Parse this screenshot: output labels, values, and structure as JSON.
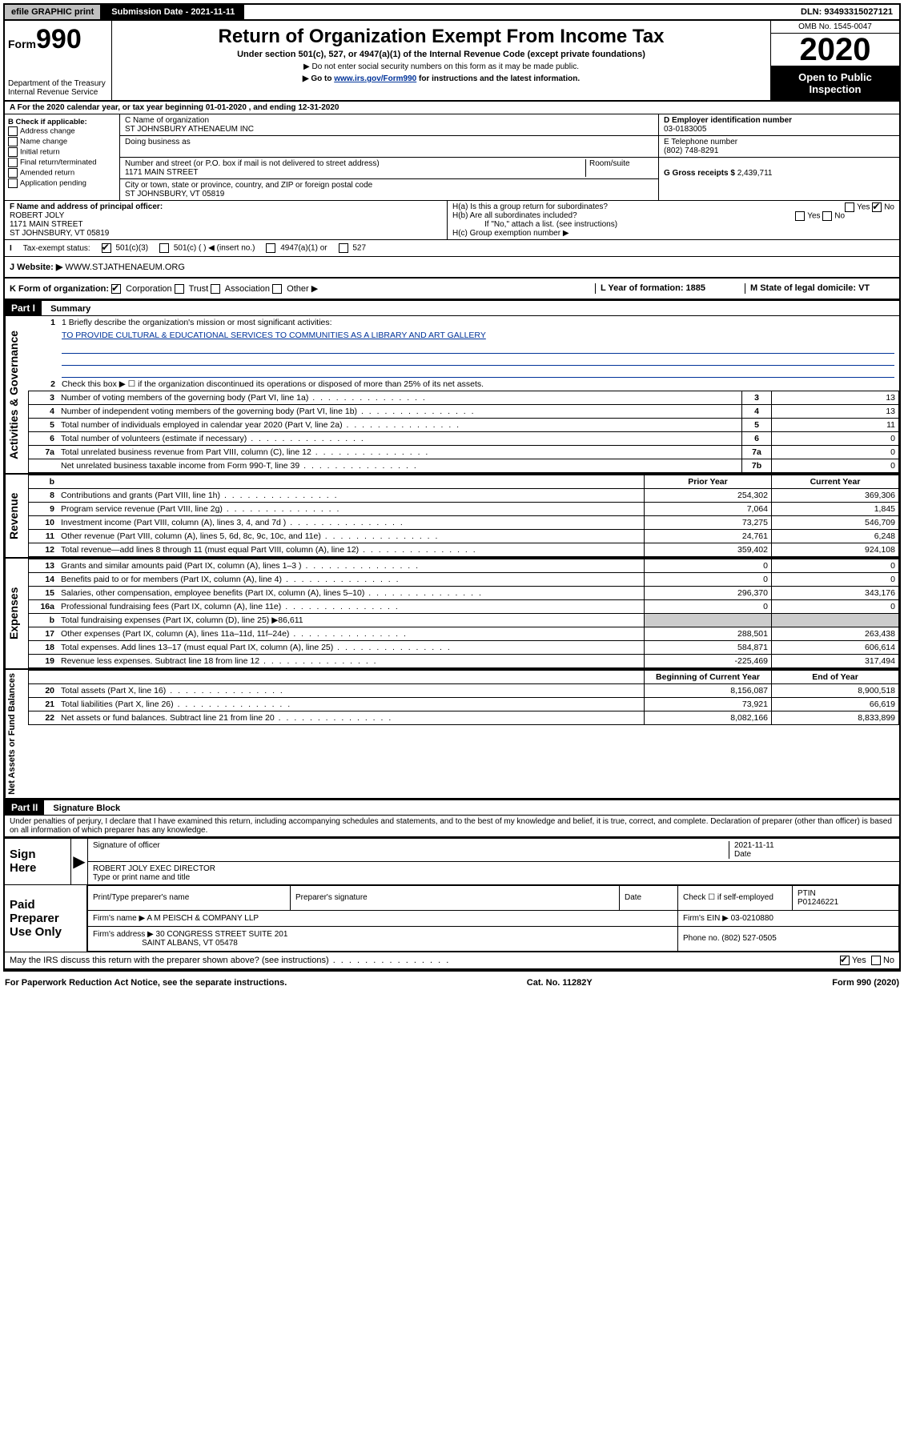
{
  "topbar": {
    "efile": "efile GRAPHIC print",
    "submission": "Submission Date - 2021-11-11",
    "dln": "DLN: 93493315027121"
  },
  "header": {
    "form_prefix": "Form",
    "form_number": "990",
    "dept": "Department of the Treasury",
    "irs": "Internal Revenue Service",
    "title": "Return of Organization Exempt From Income Tax",
    "subtitle": "Under section 501(c), 527, or 4947(a)(1) of the Internal Revenue Code (except private foundations)",
    "note1": "▶ Do not enter social security numbers on this form as it may be made public.",
    "note2_pre": "▶ Go to ",
    "note2_link": "www.irs.gov/Form990",
    "note2_post": " for instructions and the latest information.",
    "omb": "OMB No. 1545-0047",
    "year": "2020",
    "open": "Open to Public Inspection"
  },
  "lineA": "A For the 2020 calendar year, or tax year beginning 01-01-2020    , and ending 12-31-2020",
  "colB": {
    "title": "B Check if applicable:",
    "opts": [
      "Address change",
      "Name change",
      "Initial return",
      "Final return/terminated",
      "Amended return",
      "Application pending"
    ]
  },
  "colC": {
    "name_label": "C Name of organization",
    "name": "ST JOHNSBURY ATHENAEUM INC",
    "dba_label": "Doing business as",
    "addr_label": "Number and street (or P.O. box if mail is not delivered to street address)",
    "room_label": "Room/suite",
    "street": "1171 MAIN STREET",
    "city_label": "City or town, state or province, country, and ZIP or foreign postal code",
    "city": "ST JOHNSBURY, VT  05819"
  },
  "colD": {
    "ein_label": "D Employer identification number",
    "ein": "03-0183005",
    "tel_label": "E Telephone number",
    "tel": "(802) 748-8291",
    "gross_label": "G Gross receipts $",
    "gross": "2,439,711"
  },
  "rowF": {
    "label": "F Name and address of principal officer:",
    "name": "ROBERT JOLY",
    "addr1": "1171 MAIN STREET",
    "addr2": "ST JOHNSBURY, VT  05819",
    "Ha": "H(a)  Is this a group return for subordinates?",
    "Hb": "H(b)  Are all subordinates included?",
    "Hb_note": "If \"No,\" attach a list. (see instructions)",
    "Hc": "H(c)  Group exemption number ▶"
  },
  "taxStatus": {
    "label": "Tax-exempt status:",
    "opt1": "501(c)(3)",
    "opt2": "501(c) (   ) ◀ (insert no.)",
    "opt3": "4947(a)(1) or",
    "opt4": "527"
  },
  "websiteRow": {
    "label": "J   Website: ▶",
    "value": "WWW.STJATHENAEUM.ORG"
  },
  "kRow": {
    "label": "K Form of organization:",
    "opts": [
      "Corporation",
      "Trust",
      "Association",
      "Other ▶"
    ],
    "l": "L Year of formation: 1885",
    "m": "M State of legal domicile: VT"
  },
  "part1": {
    "header": "Part I",
    "title": "Summary",
    "line1_label": "1  Briefly describe the organization's mission or most significant activities:",
    "mission": "TO PROVIDE CULTURAL & EDUCATIONAL SERVICES TO COMMUNITIES AS A LIBRARY AND ART GALLERY",
    "line2": "Check this box ▶ ☐  if the organization discontinued its operations or disposed of more than 25% of its net assets.",
    "governance_rows": [
      {
        "n": "3",
        "d": "Number of voting members of the governing body (Part VI, line 1a)",
        "box": "3",
        "v": "13"
      },
      {
        "n": "4",
        "d": "Number of independent voting members of the governing body (Part VI, line 1b)",
        "box": "4",
        "v": "13"
      },
      {
        "n": "5",
        "d": "Total number of individuals employed in calendar year 2020 (Part V, line 2a)",
        "box": "5",
        "v": "11"
      },
      {
        "n": "6",
        "d": "Total number of volunteers (estimate if necessary)",
        "box": "6",
        "v": "0"
      },
      {
        "n": "7a",
        "d": "Total unrelated business revenue from Part VIII, column (C), line 12",
        "box": "7a",
        "v": "0"
      },
      {
        "n": "",
        "d": "Net unrelated business taxable income from Form 990-T, line 39",
        "box": "7b",
        "v": "0"
      }
    ],
    "col_headers": {
      "b": "b",
      "prior": "Prior Year",
      "current": "Current Year"
    },
    "revenue_rows": [
      {
        "n": "8",
        "d": "Contributions and grants (Part VIII, line 1h)",
        "p": "254,302",
        "c": "369,306"
      },
      {
        "n": "9",
        "d": "Program service revenue (Part VIII, line 2g)",
        "p": "7,064",
        "c": "1,845"
      },
      {
        "n": "10",
        "d": "Investment income (Part VIII, column (A), lines 3, 4, and 7d )",
        "p": "73,275",
        "c": "546,709"
      },
      {
        "n": "11",
        "d": "Other revenue (Part VIII, column (A), lines 5, 6d, 8c, 9c, 10c, and 11e)",
        "p": "24,761",
        "c": "6,248"
      },
      {
        "n": "12",
        "d": "Total revenue—add lines 8 through 11 (must equal Part VIII, column (A), line 12)",
        "p": "359,402",
        "c": "924,108"
      }
    ],
    "expense_rows": [
      {
        "n": "13",
        "d": "Grants and similar amounts paid (Part IX, column (A), lines 1–3 )",
        "p": "0",
        "c": "0"
      },
      {
        "n": "14",
        "d": "Benefits paid to or for members (Part IX, column (A), line 4)",
        "p": "0",
        "c": "0"
      },
      {
        "n": "15",
        "d": "Salaries, other compensation, employee benefits (Part IX, column (A), lines 5–10)",
        "p": "296,370",
        "c": "343,176"
      },
      {
        "n": "16a",
        "d": "Professional fundraising fees (Part IX, column (A), line 11e)",
        "p": "0",
        "c": "0"
      },
      {
        "n": "b",
        "d": "Total fundraising expenses (Part IX, column (D), line 25) ▶86,611",
        "p": "",
        "c": ""
      },
      {
        "n": "17",
        "d": "Other expenses (Part IX, column (A), lines 11a–11d, 11f–24e)",
        "p": "288,501",
        "c": "263,438"
      },
      {
        "n": "18",
        "d": "Total expenses. Add lines 13–17 (must equal Part IX, column (A), line 25)",
        "p": "584,871",
        "c": "606,614"
      },
      {
        "n": "19",
        "d": "Revenue less expenses. Subtract line 18 from line 12",
        "p": "-225,469",
        "c": "317,494"
      }
    ],
    "balance_headers": {
      "b": "Beginning of Current Year",
      "e": "End of Year"
    },
    "balance_rows": [
      {
        "n": "20",
        "d": "Total assets (Part X, line 16)",
        "p": "8,156,087",
        "c": "8,900,518"
      },
      {
        "n": "21",
        "d": "Total liabilities (Part X, line 26)",
        "p": "73,921",
        "c": "66,619"
      },
      {
        "n": "22",
        "d": "Net assets or fund balances. Subtract line 21 from line 20",
        "p": "8,082,166",
        "c": "8,833,899"
      }
    ]
  },
  "vlabels": {
    "gov": "Activities & Governance",
    "rev": "Revenue",
    "exp": "Expenses",
    "net": "Net Assets or Fund Balances"
  },
  "part2": {
    "header": "Part II",
    "title": "Signature Block",
    "perjury": "Under penalties of perjury, I declare that I have examined this return, including accompanying schedules and statements, and to the best of my knowledge and belief, it is true, correct, and complete. Declaration of preparer (other than officer) is based on all information of which preparer has any knowledge."
  },
  "sign": {
    "here": "Sign Here",
    "sig_label": "Signature of officer",
    "date_label": "Date",
    "date": "2021-11-11",
    "name": "ROBERT JOLY EXEC DIRECTOR",
    "name_label": "Type or print name and title"
  },
  "paid": {
    "label": "Paid Preparer Use Only",
    "cols": [
      "Print/Type preparer's name",
      "Preparer's signature",
      "Date"
    ],
    "check": "Check ☐ if self-employed",
    "ptin_label": "PTIN",
    "ptin": "P01246221",
    "firm_name_label": "Firm's name    ▶",
    "firm_name": "A M PEISCH & COMPANY LLP",
    "firm_ein_label": "Firm's EIN ▶",
    "firm_ein": "03-0210880",
    "firm_addr_label": "Firm's address ▶",
    "firm_addr1": "30 CONGRESS STREET SUITE 201",
    "firm_addr2": "SAINT ALBANS, VT  05478",
    "phone_label": "Phone no.",
    "phone": "(802) 527-0505"
  },
  "discuss": "May the IRS discuss this return with the preparer shown above? (see instructions)",
  "footer": {
    "left": "For Paperwork Reduction Act Notice, see the separate instructions.",
    "mid": "Cat. No. 11282Y",
    "right": "Form 990 (2020)"
  },
  "yes": "Yes",
  "no": "No"
}
